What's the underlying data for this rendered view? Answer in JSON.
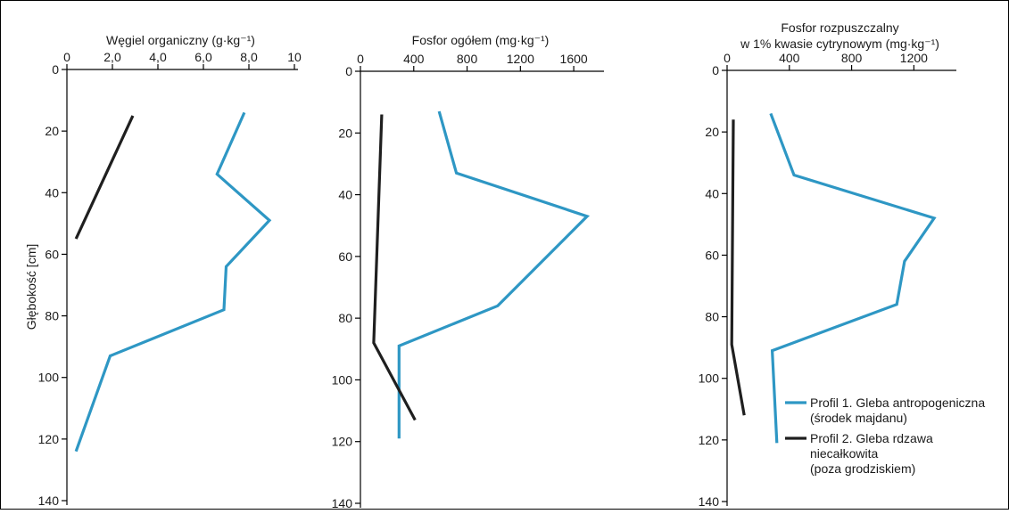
{
  "y_axis_label": "Głębokość [cm]",
  "legend": {
    "entries": [
      {
        "color": "#2e97c4",
        "label_lines": [
          "Profil 1. Gleba antropogeniczna",
          "(środek majdanu)"
        ]
      },
      {
        "color": "#1f1f1f",
        "label_lines": [
          "Profil 2. Gleba rdzawa",
          "niecałkowita",
          "(poza grodziskiem)"
        ]
      }
    ]
  },
  "colors": {
    "profile1": "#2e97c4",
    "profile2": "#1f1f1f",
    "axis": "#000000"
  },
  "chart_data": [
    {
      "type": "line",
      "title": "Węgiel organiczny (g·kg⁻¹)",
      "title_lines": [
        "Węgiel organiczny (g·kg⁻¹)"
      ],
      "xlabel": "",
      "ylabel": "Głębokość [cm]",
      "xlim": [
        0,
        10
      ],
      "ylim": [
        0,
        140
      ],
      "y_inverted": true,
      "x_axis_position": "top",
      "xticks": [
        0,
        2,
        4,
        6,
        8,
        10
      ],
      "xtick_labels": [
        "0",
        "2,0",
        "4,0",
        "6,0",
        "8,0",
        "10"
      ],
      "yticks": [
        0,
        20,
        40,
        60,
        80,
        100,
        120,
        140
      ],
      "ytick_labels": [
        "0",
        "20",
        "40",
        "60",
        "80",
        "100",
        "120",
        "140"
      ],
      "series": [
        {
          "name": "Profil 1. Gleba antropogeniczna (środek majdanu)",
          "color": "#2e97c4",
          "points": [
            [
              7.8,
              14
            ],
            [
              6.6,
              34
            ],
            [
              8.9,
              49
            ],
            [
              7.0,
              64
            ],
            [
              6.9,
              78
            ],
            [
              1.9,
              93
            ],
            [
              0.4,
              124
            ]
          ]
        },
        {
          "name": "Profil 2. Gleba rdzawa niecałkowita (poza grodziskiem)",
          "color": "#1f1f1f",
          "points": [
            [
              2.9,
              15
            ],
            [
              0.4,
              55
            ]
          ]
        }
      ]
    },
    {
      "type": "line",
      "title": "Fosfor ogółem (mg·kg⁻¹)",
      "title_lines": [
        "Fosfor ogółem (mg·kg⁻¹)"
      ],
      "xlabel": "",
      "ylabel": "",
      "xlim": [
        0,
        1800
      ],
      "ylim": [
        0,
        140
      ],
      "y_inverted": true,
      "x_axis_position": "top",
      "xticks": [
        0,
        400,
        800,
        1200,
        1600
      ],
      "xtick_labels": [
        "0",
        "400",
        "800",
        "1200",
        "1600"
      ],
      "yticks": [
        0,
        20,
        40,
        60,
        80,
        100,
        120,
        140
      ],
      "ytick_labels": [
        "0",
        "20",
        "40",
        "60",
        "80",
        "100",
        "120",
        "140"
      ],
      "series": [
        {
          "name": "Profil 1. Gleba antropogeniczna (środek majdanu)",
          "color": "#2e97c4",
          "points": [
            [
              590,
              13
            ],
            [
              720,
              33
            ],
            [
              1700,
              47
            ],
            [
              1030,
              76
            ],
            [
              290,
              89
            ],
            [
              290,
              119
            ]
          ]
        },
        {
          "name": "Profil 2. Gleba rdzawa niecałkowita (poza grodziskiem)",
          "color": "#1f1f1f",
          "points": [
            [
              160,
              14
            ],
            [
              100,
              88
            ],
            [
              410,
              113
            ]
          ]
        }
      ]
    },
    {
      "type": "line",
      "title": "Fosfor rozpuszczalny w 1% kwasie cytrynowym (mg·kg⁻¹)",
      "title_lines": [
        "Fosfor rozpuszczalny",
        "w 1% kwasie cytrynowym (mg·kg⁻¹)"
      ],
      "xlabel": "",
      "ylabel": "",
      "xlim": [
        0,
        1450
      ],
      "ylim": [
        0,
        140
      ],
      "y_inverted": true,
      "x_axis_position": "top",
      "xticks": [
        0,
        400,
        800,
        1200
      ],
      "xtick_labels": [
        "0",
        "400",
        "800",
        "1200"
      ],
      "yticks": [
        0,
        20,
        40,
        60,
        80,
        100,
        120,
        140
      ],
      "ytick_labels": [
        "0",
        "20",
        "40",
        "60",
        "80",
        "100",
        "120",
        "140"
      ],
      "series": [
        {
          "name": "Profil 1. Gleba antropogeniczna (środek majdanu)",
          "color": "#2e97c4",
          "points": [
            [
              280,
              14
            ],
            [
              430,
              34
            ],
            [
              1330,
              48
            ],
            [
              1140,
              62
            ],
            [
              1090,
              76
            ],
            [
              290,
              91
            ],
            [
              320,
              121
            ]
          ]
        },
        {
          "name": "Profil 2. Gleba rdzawa niecałkowita (poza grodziskiem)",
          "color": "#1f1f1f",
          "points": [
            [
              40,
              16
            ],
            [
              30,
              89
            ],
            [
              110,
              112
            ]
          ]
        }
      ]
    }
  ]
}
